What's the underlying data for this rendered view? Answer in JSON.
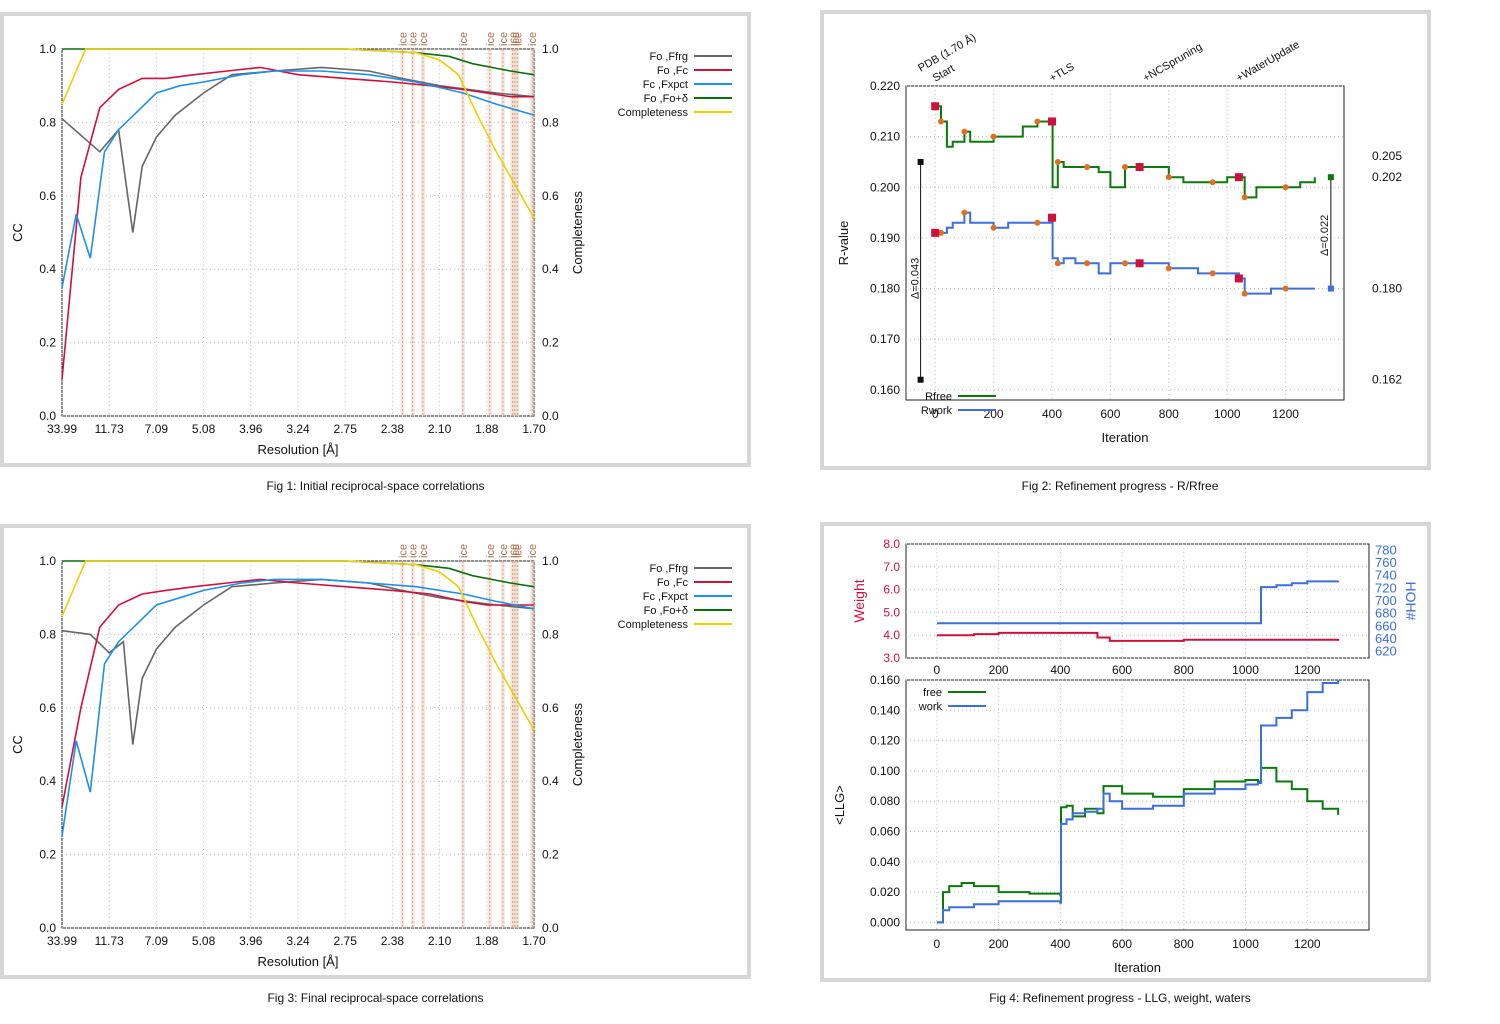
{
  "captions": {
    "fig1": "Fig 1:  Initial reciprocal-space correlations",
    "fig2": "Fig 2:  Refinement progress - R/Rfree",
    "fig3": "Fig 3:  Final reciprocal-space correlations",
    "fig4": "Fig 4:  Refinement progress - LLG, weight, waters"
  },
  "chart_data": [
    {
      "id": "fig1",
      "type": "line",
      "xlabel": "Resolution [Å]",
      "ylabel": "CC",
      "y2label": "Completeness",
      "xticks": [
        "33.99",
        "11.73",
        "7.09",
        "5.08",
        "3.96",
        "3.24",
        "2.75",
        "2.38",
        "2.10",
        "1.88",
        "1.70"
      ],
      "yticks": [
        "0.0",
        "0.2",
        "0.4",
        "0.6",
        "0.8",
        "1.0"
      ],
      "y2ticks": [
        "0.0",
        "0.2",
        "0.4",
        "0.6",
        "0.8",
        "1.0"
      ],
      "ylim": [
        0,
        1.0
      ],
      "legend": [
        "Fo ,Ffrg",
        "Fo ,Fc",
        "Fc ,Fxpct",
        "Fo ,Fo+δ",
        "Completeness"
      ],
      "legend_placement": "top-right outside",
      "ice_rings_A": [
        3.92,
        3.67,
        3.44,
        2.67,
        2.25,
        2.07,
        1.95,
        1.92,
        1.89,
        1.72
      ],
      "ice_label": "ice",
      "colors": {
        "Fo_Ffrg": "#666666",
        "Fo_Fc": "#d0103c",
        "Fc_Fxpct": "#1e90e8",
        "Fo_Fo_delta": "#0a6e0a",
        "Completeness": "#f0d000"
      },
      "series": [
        {
          "name": "Fo ,Ffrg",
          "color": "#666666",
          "x": [
            0,
            0.08,
            0.12,
            0.15,
            0.17,
            0.2,
            0.24,
            0.3,
            0.36,
            0.45,
            0.55,
            0.65,
            0.72,
            0.8,
            0.86,
            0.92,
            1.0
          ],
          "values": [
            0.81,
            0.72,
            0.78,
            0.5,
            0.68,
            0.76,
            0.82,
            0.88,
            0.93,
            0.94,
            0.95,
            0.94,
            0.92,
            0.9,
            0.89,
            0.88,
            0.87
          ]
        },
        {
          "name": "Fo ,Fc",
          "color": "#d0103c",
          "x": [
            0,
            0.04,
            0.08,
            0.12,
            0.17,
            0.22,
            0.28,
            0.35,
            0.42,
            0.5,
            0.6,
            0.7,
            0.78,
            0.85,
            0.9,
            0.95,
            1.0
          ],
          "values": [
            0.1,
            0.65,
            0.84,
            0.89,
            0.92,
            0.92,
            0.93,
            0.94,
            0.95,
            0.93,
            0.92,
            0.91,
            0.9,
            0.89,
            0.88,
            0.87,
            0.87
          ]
        },
        {
          "name": "Fc ,Fxpct",
          "color": "#1e90e8",
          "x": [
            0,
            0.03,
            0.06,
            0.09,
            0.12,
            0.16,
            0.2,
            0.25,
            0.3,
            0.38,
            0.45,
            0.55,
            0.65,
            0.75,
            0.85,
            0.92,
            1.0
          ],
          "values": [
            0.35,
            0.55,
            0.43,
            0.72,
            0.78,
            0.83,
            0.88,
            0.9,
            0.91,
            0.93,
            0.94,
            0.94,
            0.93,
            0.91,
            0.88,
            0.85,
            0.82
          ]
        },
        {
          "name": "Fo ,Fo+δ",
          "color": "#0a6e0a",
          "x": [
            0,
            0.2,
            0.4,
            0.6,
            0.75,
            0.82,
            0.87,
            0.91,
            0.95,
            1.0
          ],
          "values": [
            1.0,
            1.0,
            1.0,
            1.0,
            0.99,
            0.98,
            0.96,
            0.95,
            0.94,
            0.93
          ]
        },
        {
          "name": "Completeness",
          "color": "#f0d000",
          "x": [
            0,
            0.05,
            0.1,
            0.2,
            0.4,
            0.6,
            0.75,
            0.8,
            0.84,
            0.88,
            0.92,
            0.96,
            1.0
          ],
          "values": [
            0.85,
            1.0,
            1.0,
            1.0,
            1.0,
            1.0,
            0.99,
            0.97,
            0.93,
            0.82,
            0.72,
            0.63,
            0.54
          ]
        }
      ]
    },
    {
      "id": "fig2",
      "type": "line",
      "xlabel": "Iteration",
      "ylabel": "R-value",
      "xticks": [
        "0",
        "200",
        "400",
        "600",
        "800",
        "1000",
        "1200"
      ],
      "yticks": [
        "0.160",
        "0.170",
        "0.180",
        "0.190",
        "0.200",
        "0.210",
        "0.220"
      ],
      "xlim": [
        -100,
        1400
      ],
      "ylim": [
        0.158,
        0.22
      ],
      "top_labels": [
        "PDB (1.70 Å)",
        "Start",
        "+TLS",
        "+NCSpruning",
        "+WaterUpdate"
      ],
      "top_label_x": [
        -50,
        0,
        400,
        720,
        1040
      ],
      "right_values": [
        "0.205",
        "0.202",
        "0.180",
        "0.162"
      ],
      "delta_left": "Δ=0.043",
      "delta_right": "Δ=0.022",
      "legend": [
        "Rfree",
        "Rwork"
      ],
      "legend_placement": "bottom-left",
      "series": [
        {
          "name": "Rfree",
          "color": "#0a7a0a",
          "x": [
            0,
            20,
            40,
            60,
            100,
            120,
            150,
            200,
            250,
            300,
            350,
            400,
            402,
            420,
            440,
            480,
            520,
            560,
            600,
            650,
            700,
            750,
            800,
            850,
            900,
            950,
            1000,
            1040,
            1060,
            1100,
            1150,
            1200,
            1250,
            1300
          ],
          "values": [
            0.216,
            0.213,
            0.208,
            0.209,
            0.211,
            0.209,
            0.209,
            0.21,
            0.21,
            0.212,
            0.213,
            0.213,
            0.2,
            0.205,
            0.204,
            0.204,
            0.204,
            0.203,
            0.2,
            0.204,
            0.204,
            0.204,
            0.202,
            0.201,
            0.201,
            0.201,
            0.202,
            0.202,
            0.198,
            0.2,
            0.2,
            0.2,
            0.201,
            0.202
          ]
        },
        {
          "name": "Rwork",
          "color": "#3a6fdc",
          "x": [
            0,
            20,
            40,
            60,
            100,
            120,
            150,
            200,
            250,
            300,
            350,
            400,
            402,
            420,
            440,
            480,
            520,
            560,
            600,
            650,
            700,
            750,
            800,
            850,
            900,
            950,
            1000,
            1040,
            1060,
            1100,
            1150,
            1200,
            1250,
            1300
          ],
          "values": [
            0.191,
            0.191,
            0.192,
            0.193,
            0.195,
            0.193,
            0.193,
            0.192,
            0.193,
            0.193,
            0.193,
            0.194,
            0.186,
            0.185,
            0.186,
            0.185,
            0.185,
            0.183,
            0.185,
            0.185,
            0.185,
            0.185,
            0.184,
            0.184,
            0.183,
            0.183,
            0.183,
            0.182,
            0.179,
            0.179,
            0.18,
            0.18,
            0.18,
            0.18
          ]
        }
      ]
    },
    {
      "id": "fig3",
      "type": "line",
      "xlabel": "Resolution [Å]",
      "ylabel": "CC",
      "y2label": "Completeness",
      "xticks": [
        "33.99",
        "11.73",
        "7.09",
        "5.08",
        "3.96",
        "3.24",
        "2.75",
        "2.38",
        "2.10",
        "1.88",
        "1.70"
      ],
      "yticks": [
        "0.0",
        "0.2",
        "0.4",
        "0.6",
        "0.8",
        "1.0"
      ],
      "y2ticks": [
        "0.0",
        "0.2",
        "0.4",
        "0.6",
        "0.8",
        "1.0"
      ],
      "ylim": [
        0,
        1.0
      ],
      "legend": [
        "Fo ,Ffrg",
        "Fo ,Fc",
        "Fc ,Fxpct",
        "Fo ,Fo+δ",
        "Completeness"
      ],
      "legend_placement": "top-right outside",
      "ice_rings_A": [
        3.92,
        3.67,
        3.44,
        2.67,
        2.25,
        2.07,
        1.95,
        1.92,
        1.89,
        1.72
      ],
      "ice_label": "ice",
      "series": [
        {
          "name": "Fo ,Ffrg",
          "color": "#666666",
          "x": [
            0,
            0.06,
            0.1,
            0.13,
            0.15,
            0.17,
            0.2,
            0.24,
            0.3,
            0.36,
            0.45,
            0.55,
            0.65,
            0.72,
            0.8,
            0.86,
            0.92,
            1.0
          ],
          "values": [
            0.81,
            0.8,
            0.75,
            0.78,
            0.5,
            0.68,
            0.76,
            0.82,
            0.88,
            0.93,
            0.94,
            0.95,
            0.94,
            0.92,
            0.9,
            0.89,
            0.88,
            0.87
          ]
        },
        {
          "name": "Fo ,Fc",
          "color": "#d0103c",
          "x": [
            0,
            0.04,
            0.08,
            0.12,
            0.17,
            0.22,
            0.28,
            0.35,
            0.42,
            0.5,
            0.6,
            0.7,
            0.78,
            0.85,
            0.9,
            0.95,
            1.0
          ],
          "values": [
            0.33,
            0.6,
            0.82,
            0.88,
            0.91,
            0.92,
            0.93,
            0.94,
            0.95,
            0.94,
            0.93,
            0.92,
            0.91,
            0.89,
            0.88,
            0.88,
            0.88
          ]
        },
        {
          "name": "Fc ,Fxpct",
          "color": "#1e90e8",
          "x": [
            0,
            0.03,
            0.06,
            0.09,
            0.12,
            0.16,
            0.2,
            0.25,
            0.3,
            0.38,
            0.45,
            0.55,
            0.65,
            0.75,
            0.85,
            0.92,
            1.0
          ],
          "values": [
            0.25,
            0.51,
            0.37,
            0.72,
            0.78,
            0.83,
            0.88,
            0.9,
            0.92,
            0.94,
            0.95,
            0.95,
            0.94,
            0.93,
            0.91,
            0.89,
            0.87
          ]
        },
        {
          "name": "Fo ,Fo+δ",
          "color": "#0a6e0a",
          "x": [
            0,
            0.2,
            0.4,
            0.6,
            0.75,
            0.82,
            0.87,
            0.91,
            0.95,
            1.0
          ],
          "values": [
            1.0,
            1.0,
            1.0,
            1.0,
            0.99,
            0.98,
            0.96,
            0.95,
            0.94,
            0.93
          ]
        },
        {
          "name": "Completeness",
          "color": "#f0d000",
          "x": [
            0,
            0.05,
            0.1,
            0.2,
            0.4,
            0.6,
            0.75,
            0.8,
            0.84,
            0.88,
            0.92,
            0.96,
            1.0
          ],
          "values": [
            0.85,
            1.0,
            1.0,
            1.0,
            1.0,
            1.0,
            0.99,
            0.97,
            0.93,
            0.82,
            0.72,
            0.63,
            0.54
          ]
        }
      ]
    },
    {
      "id": "fig4",
      "type": "line",
      "xlabel": "Iteration",
      "top": {
        "ylabel": "Weight",
        "y2label": "HOH#",
        "yticks": [
          "3.0",
          "4.0",
          "5.0",
          "6.0",
          "7.0",
          "8.0"
        ],
        "y2ticks": [
          "620",
          "640",
          "660",
          "680",
          "700",
          "720",
          "740",
          "760",
          "780"
        ],
        "xticks": [
          "0",
          "200",
          "400",
          "600",
          "800",
          "1000",
          "1200"
        ],
        "weight": {
          "color": "#d0103c",
          "x": [
            0,
            100,
            120,
            200,
            500,
            520,
            550,
            560,
            800,
            1300
          ],
          "values": [
            4.0,
            4.0,
            4.05,
            4.1,
            4.1,
            3.9,
            3.9,
            3.75,
            3.8,
            3.75
          ]
        },
        "waters": {
          "color": "#3a6fdc",
          "x": [
            0,
            1040,
            1050,
            1100,
            1150,
            1200,
            1300
          ],
          "values": [
            665,
            665,
            722,
            725,
            728,
            731,
            732
          ]
        }
      },
      "bottom": {
        "ylabel": "<LLG>",
        "yticks": [
          "0.000",
          "0.020",
          "0.040",
          "0.060",
          "0.080",
          "0.100",
          "0.120",
          "0.140",
          "0.160"
        ],
        "xticks": [
          "0",
          "200",
          "400",
          "600",
          "800",
          "1000",
          "1200"
        ],
        "legend": [
          "free",
          "work"
        ],
        "legend_placement": "top-left",
        "series": [
          {
            "name": "free",
            "color": "#0a7a0a",
            "x": [
              0,
              20,
              40,
              80,
              120,
              200,
              300,
              400,
              402,
              420,
              440,
              480,
              520,
              540,
              560,
              600,
              700,
              800,
              900,
              1000,
              1040,
              1050,
              1100,
              1150,
              1200,
              1250,
              1300
            ],
            "values": [
              0.0,
              0.02,
              0.024,
              0.026,
              0.024,
              0.02,
              0.019,
              0.018,
              0.076,
              0.077,
              0.07,
              0.075,
              0.072,
              0.09,
              0.09,
              0.085,
              0.083,
              0.088,
              0.093,
              0.094,
              0.093,
              0.102,
              0.093,
              0.088,
              0.08,
              0.075,
              0.071
            ]
          },
          {
            "name": "work",
            "color": "#3a6fdc",
            "x": [
              0,
              20,
              40,
              80,
              120,
              200,
              300,
              400,
              402,
              420,
              440,
              480,
              520,
              540,
              560,
              600,
              700,
              800,
              900,
              1000,
              1040,
              1050,
              1100,
              1150,
              1200,
              1250,
              1300
            ],
            "values": [
              0.0,
              0.008,
              0.01,
              0.01,
              0.012,
              0.014,
              0.014,
              0.013,
              0.065,
              0.068,
              0.072,
              0.073,
              0.075,
              0.085,
              0.08,
              0.075,
              0.077,
              0.085,
              0.088,
              0.091,
              0.092,
              0.13,
              0.135,
              0.14,
              0.152,
              0.158,
              0.16
            ]
          }
        ]
      }
    }
  ]
}
